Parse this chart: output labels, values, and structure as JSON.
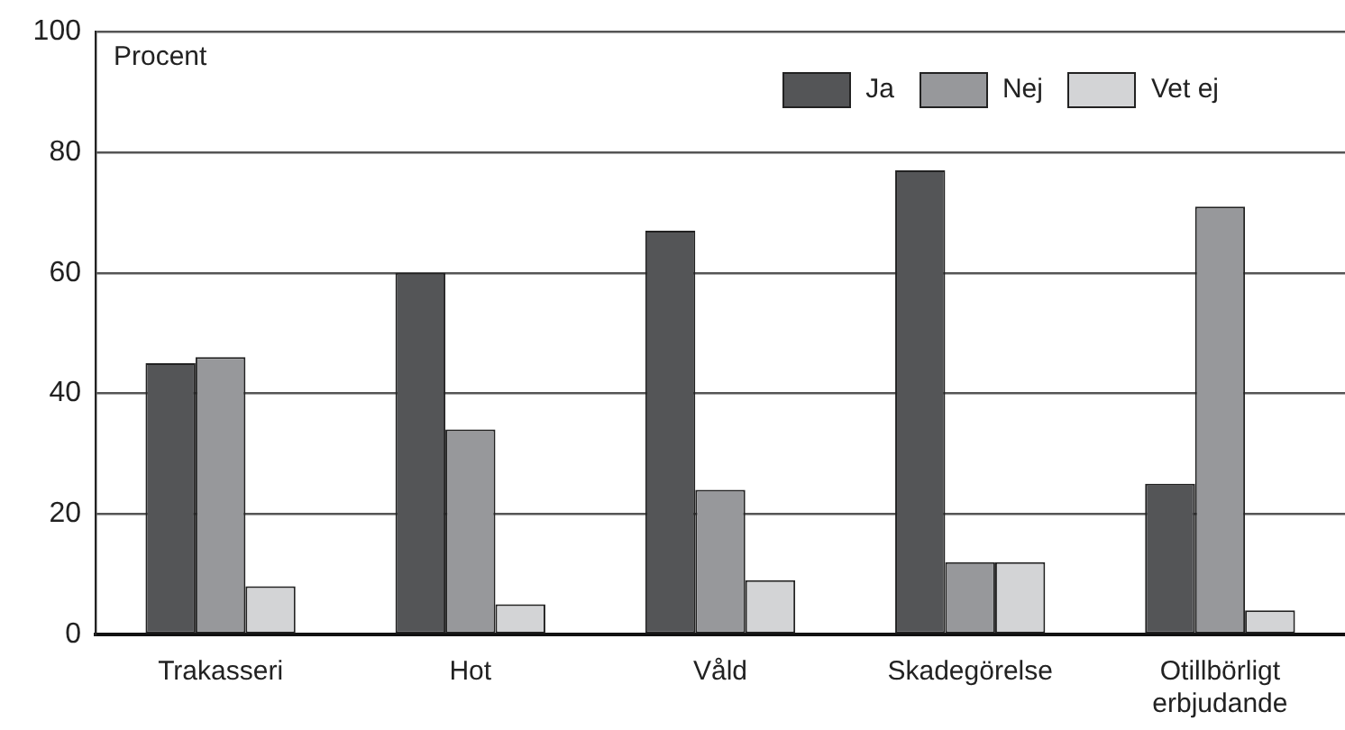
{
  "chart_data": {
    "type": "bar",
    "ylabel": "Procent",
    "categories": [
      "Trakasseri",
      "Hot",
      "Våld",
      "Skadegörelse",
      "Otillbörligt erbjudande"
    ],
    "series": [
      {
        "name": "Ja",
        "color": "#545557",
        "values": [
          45,
          60,
          67,
          77,
          25
        ]
      },
      {
        "name": "Nej",
        "color": "#97989b",
        "values": [
          46,
          34,
          24,
          12,
          71
        ]
      },
      {
        "name": "Vet ej",
        "color": "#d3d4d6",
        "values": [
          8,
          5,
          9,
          12,
          4
        ]
      }
    ],
    "ylim": [
      0,
      100
    ],
    "yticks": [
      0,
      20,
      40,
      60,
      80,
      100
    ],
    "grid": "y",
    "legend": "top right"
  }
}
